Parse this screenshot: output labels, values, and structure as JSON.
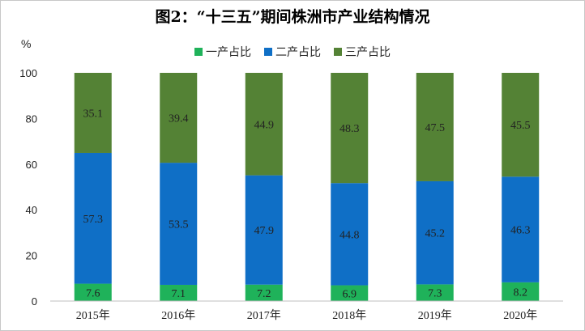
{
  "chart_data": {
    "type": "bar",
    "stacked": true,
    "title": "图2：“十三五”期间株洲市产业结构情况",
    "ylabel": "%",
    "xlabel": "",
    "ylim": [
      0,
      100
    ],
    "yticks": [
      0,
      20,
      40,
      60,
      80,
      100
    ],
    "categories": [
      "2015年",
      "2016年",
      "2017年",
      "2018年",
      "2019年",
      "2020年"
    ],
    "series": [
      {
        "name": "一产占比",
        "color": "#1fb25a",
        "values": [
          7.6,
          7.1,
          7.2,
          6.9,
          7.3,
          8.2
        ]
      },
      {
        "name": "二产占比",
        "color": "#0f6fc6",
        "values": [
          57.3,
          53.5,
          47.9,
          44.8,
          45.2,
          46.3
        ]
      },
      {
        "name": "三产占比",
        "color": "#548235",
        "values": [
          35.1,
          39.4,
          44.9,
          48.3,
          47.5,
          45.5
        ]
      }
    ],
    "legend_position": "top-center",
    "grid": false
  }
}
